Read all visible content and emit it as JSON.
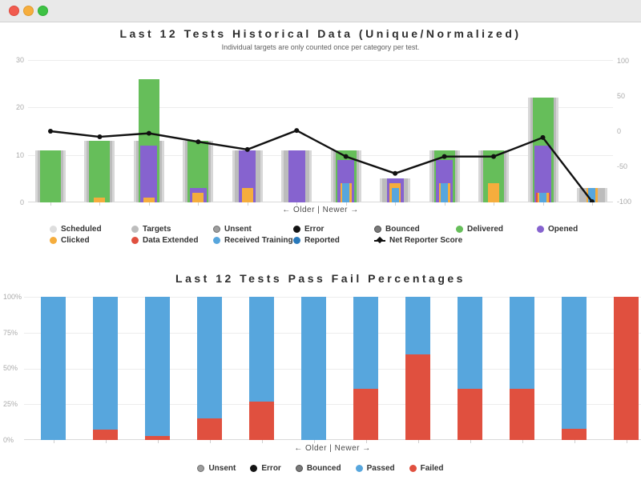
{
  "window": {
    "buttons": [
      "close",
      "minimize",
      "zoom"
    ]
  },
  "chart_data": [
    {
      "type": "bar",
      "variant": "overlaid bars + line overlay",
      "title": "Last 12 Tests Historical Data (Unique/Normalized)",
      "subtitle": "Individual targets are only counted once per category per test.",
      "xlabel": "← Older | Newer →",
      "categories": [
        1,
        2,
        3,
        4,
        5,
        6,
        7,
        8,
        9,
        10,
        11,
        12
      ],
      "x_tick_labels_visible": false,
      "left_axis": {
        "range": [
          0,
          30
        ],
        "ticks": [
          "30",
          "20",
          "10",
          "0"
        ],
        "grid": true
      },
      "right_axis": {
        "range": [
          -100,
          100
        ],
        "ticks": [
          "100",
          "50",
          "0",
          "-50",
          "-100"
        ],
        "grid": false
      },
      "overlay_widths": {
        "Scheduled": 38,
        "Targets": 32,
        "Delivered": 26,
        "Opened": 21,
        "Data Extended": 17,
        "Clicked": 14,
        "Received Training": 9
      },
      "series": [
        {
          "name": "Scheduled",
          "color": "#d7d7d7",
          "axis": "left",
          "values": [
            11,
            13,
            13,
            13,
            11,
            11,
            11,
            5,
            11,
            11,
            22,
            3
          ]
        },
        {
          "name": "Targets",
          "color": "#bcbcbc",
          "axis": "left",
          "values": [
            11,
            13,
            13,
            13,
            11,
            11,
            11,
            5,
            11,
            11,
            22,
            3
          ]
        },
        {
          "name": "Delivered",
          "color": "#66be5a",
          "axis": "left",
          "values": [
            11,
            13,
            26,
            13,
            0,
            0,
            11,
            0,
            11,
            11,
            22,
            0
          ]
        },
        {
          "name": "Opened",
          "color": "#8663cf",
          "axis": "left",
          "values": [
            0,
            0,
            12,
            3,
            11,
            11,
            9,
            5,
            9,
            0,
            12,
            0
          ]
        },
        {
          "name": "Data Extended",
          "color": "#e0503f",
          "axis": "left",
          "values": [
            0,
            0,
            0,
            0,
            0,
            0,
            0,
            0,
            0,
            0,
            2,
            0
          ]
        },
        {
          "name": "Clicked",
          "color": "#f5ad3d",
          "axis": "left",
          "values": [
            0,
            1,
            1,
            2,
            3,
            0,
            4,
            4,
            4,
            4,
            2,
            3
          ]
        },
        {
          "name": "Received Training",
          "color": "#57a6dd",
          "axis": "left",
          "values": [
            0,
            0,
            0,
            0,
            0,
            0,
            4,
            3,
            4,
            0,
            2,
            3
          ]
        },
        {
          "name": "Net Reporter Score",
          "type": "line",
          "color": "#111111",
          "axis": "right",
          "values": [
            0,
            -8,
            -3,
            -15,
            -26,
            1,
            -36,
            -60,
            -36,
            -36,
            -9,
            -100
          ]
        }
      ],
      "legend": [
        {
          "label": "Scheduled",
          "color": "#dedede",
          "marker": "circle",
          "row": 0,
          "col": 0
        },
        {
          "label": "Targets",
          "color": "#bdbdbd",
          "marker": "circle",
          "row": 0,
          "col": 1
        },
        {
          "label": "Unsent",
          "color": "#9e9e9e",
          "border": "#6f6f6f",
          "marker": "circle",
          "row": 0,
          "col": 2
        },
        {
          "label": "Error",
          "color": "#141414",
          "marker": "circle",
          "row": 0,
          "col": 3
        },
        {
          "label": "Bounced",
          "color": "#7a7a7a",
          "border": "#4a4a4a",
          "marker": "circle",
          "row": 0,
          "col": 4
        },
        {
          "label": "Delivered",
          "color": "#66be5a",
          "marker": "circle",
          "row": 0,
          "col": 5
        },
        {
          "label": "Opened",
          "color": "#8663cf",
          "marker": "circle",
          "row": 0,
          "col": 6
        },
        {
          "label": "Clicked",
          "color": "#f5ad3d",
          "marker": "circle",
          "row": 1,
          "col": 0
        },
        {
          "label": "Data Extended",
          "color": "#e0503f",
          "marker": "circle",
          "row": 1,
          "col": 1
        },
        {
          "label": "Received Training",
          "color": "#57a6dd",
          "marker": "circle",
          "row": 1,
          "col": 2
        },
        {
          "label": "Reported",
          "color": "#2878ba",
          "marker": "circle",
          "row": 1,
          "col": 3
        },
        {
          "label": "Net Reporter Score",
          "color": "#111111",
          "marker": "line",
          "row": 1,
          "col": 4
        }
      ]
    },
    {
      "type": "bar",
      "variant": "stacked percentage",
      "title": "Last 12 Tests Pass Fail Percentages",
      "xlabel": "← Older | Newer →",
      "categories": [
        1,
        2,
        3,
        4,
        5,
        6,
        7,
        8,
        9,
        10,
        11,
        12
      ],
      "x_tick_labels_visible": false,
      "y_axis": {
        "range": [
          0,
          100
        ],
        "ticks": [
          "100%",
          "75%",
          "50%",
          "25%",
          "0%"
        ],
        "grid": true
      },
      "series": [
        {
          "name": "Passed",
          "color": "#57a6dd",
          "values": [
            100,
            93,
            97,
            85,
            73,
            100,
            64,
            40,
            64,
            64,
            92,
            0
          ]
        },
        {
          "name": "Failed",
          "color": "#e0503f",
          "values": [
            0,
            7,
            3,
            15,
            27,
            0,
            36,
            60,
            36,
            36,
            8,
            100
          ]
        }
      ],
      "legend": [
        {
          "label": "Unsent",
          "color": "#9e9e9e",
          "border": "#6f6f6f",
          "marker": "circle"
        },
        {
          "label": "Error",
          "color": "#141414",
          "marker": "circle"
        },
        {
          "label": "Bounced",
          "color": "#7a7a7a",
          "border": "#4a4a4a",
          "marker": "circle"
        },
        {
          "label": "Passed",
          "color": "#57a6dd",
          "marker": "circle"
        },
        {
          "label": "Failed",
          "color": "#e0503f",
          "marker": "circle"
        }
      ]
    }
  ]
}
